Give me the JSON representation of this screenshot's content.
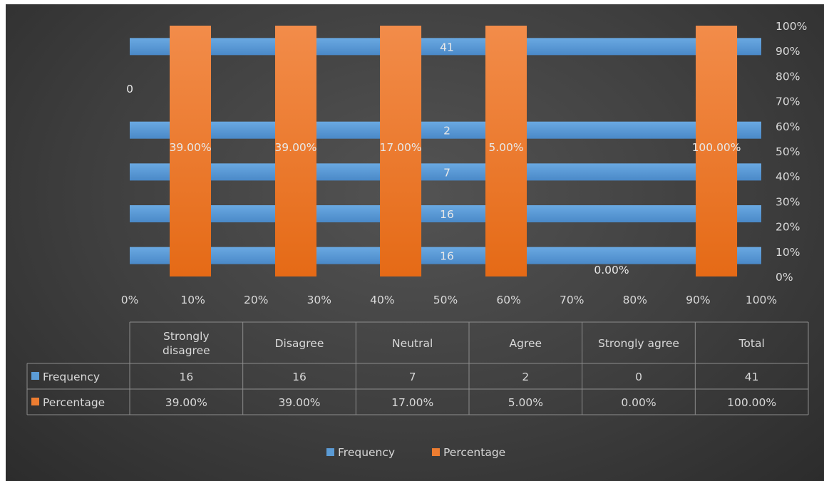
{
  "chart_data": {
    "type": "bar",
    "categories": [
      "Strongly disagree",
      "Disagree",
      "Neutral",
      "Agree",
      "Strongly agree",
      "Total"
    ],
    "series": [
      {
        "name": "Frequency",
        "values": [
          16,
          16,
          7,
          2,
          0,
          41
        ],
        "color": "#5b9bd5",
        "orientation": "horizontal"
      },
      {
        "name": "Percentage",
        "values": [
          39.0,
          39.0,
          17.0,
          5.0,
          0.0,
          100.0
        ],
        "value_labels": [
          "39.00%",
          "39.00%",
          "17.00%",
          "5.00%",
          "0.00%",
          "100.00%"
        ],
        "color": "#ed7d31",
        "orientation": "vertical"
      }
    ],
    "frequency_axis": {
      "label_categories": [
        "Strongly agree",
        "Agree",
        "Neutral",
        "Disagree",
        "Strongly disagree"
      ],
      "label_values": [
        "0",
        "2",
        "7",
        "16",
        "16"
      ],
      "extra_bar_label": "41"
    },
    "x_axis_ticks": [
      "0%",
      "10%",
      "20%",
      "30%",
      "40%",
      "50%",
      "60%",
      "70%",
      "80%",
      "90%",
      "100%"
    ],
    "y_axis_right_ticks": [
      "0%",
      "10%",
      "20%",
      "30%",
      "40%",
      "50%",
      "60%",
      "70%",
      "80%",
      "90%",
      "100%"
    ],
    "legend": {
      "position": "bottom",
      "entries": [
        "Frequency",
        "Percentage"
      ]
    },
    "data_table": {
      "headers": [
        "Strongly disagree",
        "Disagree",
        "Neutral",
        "Agree",
        "Strongly agree",
        "Total"
      ],
      "rows": [
        {
          "name": "Frequency",
          "cells": [
            "16",
            "16",
            "7",
            "2",
            "0",
            "41"
          ]
        },
        {
          "name": "Percentage",
          "cells": [
            "39.00%",
            "39.00%",
            "17.00%",
            "5.00%",
            "0.00%",
            "100.00%"
          ]
        }
      ]
    },
    "grid": false
  }
}
